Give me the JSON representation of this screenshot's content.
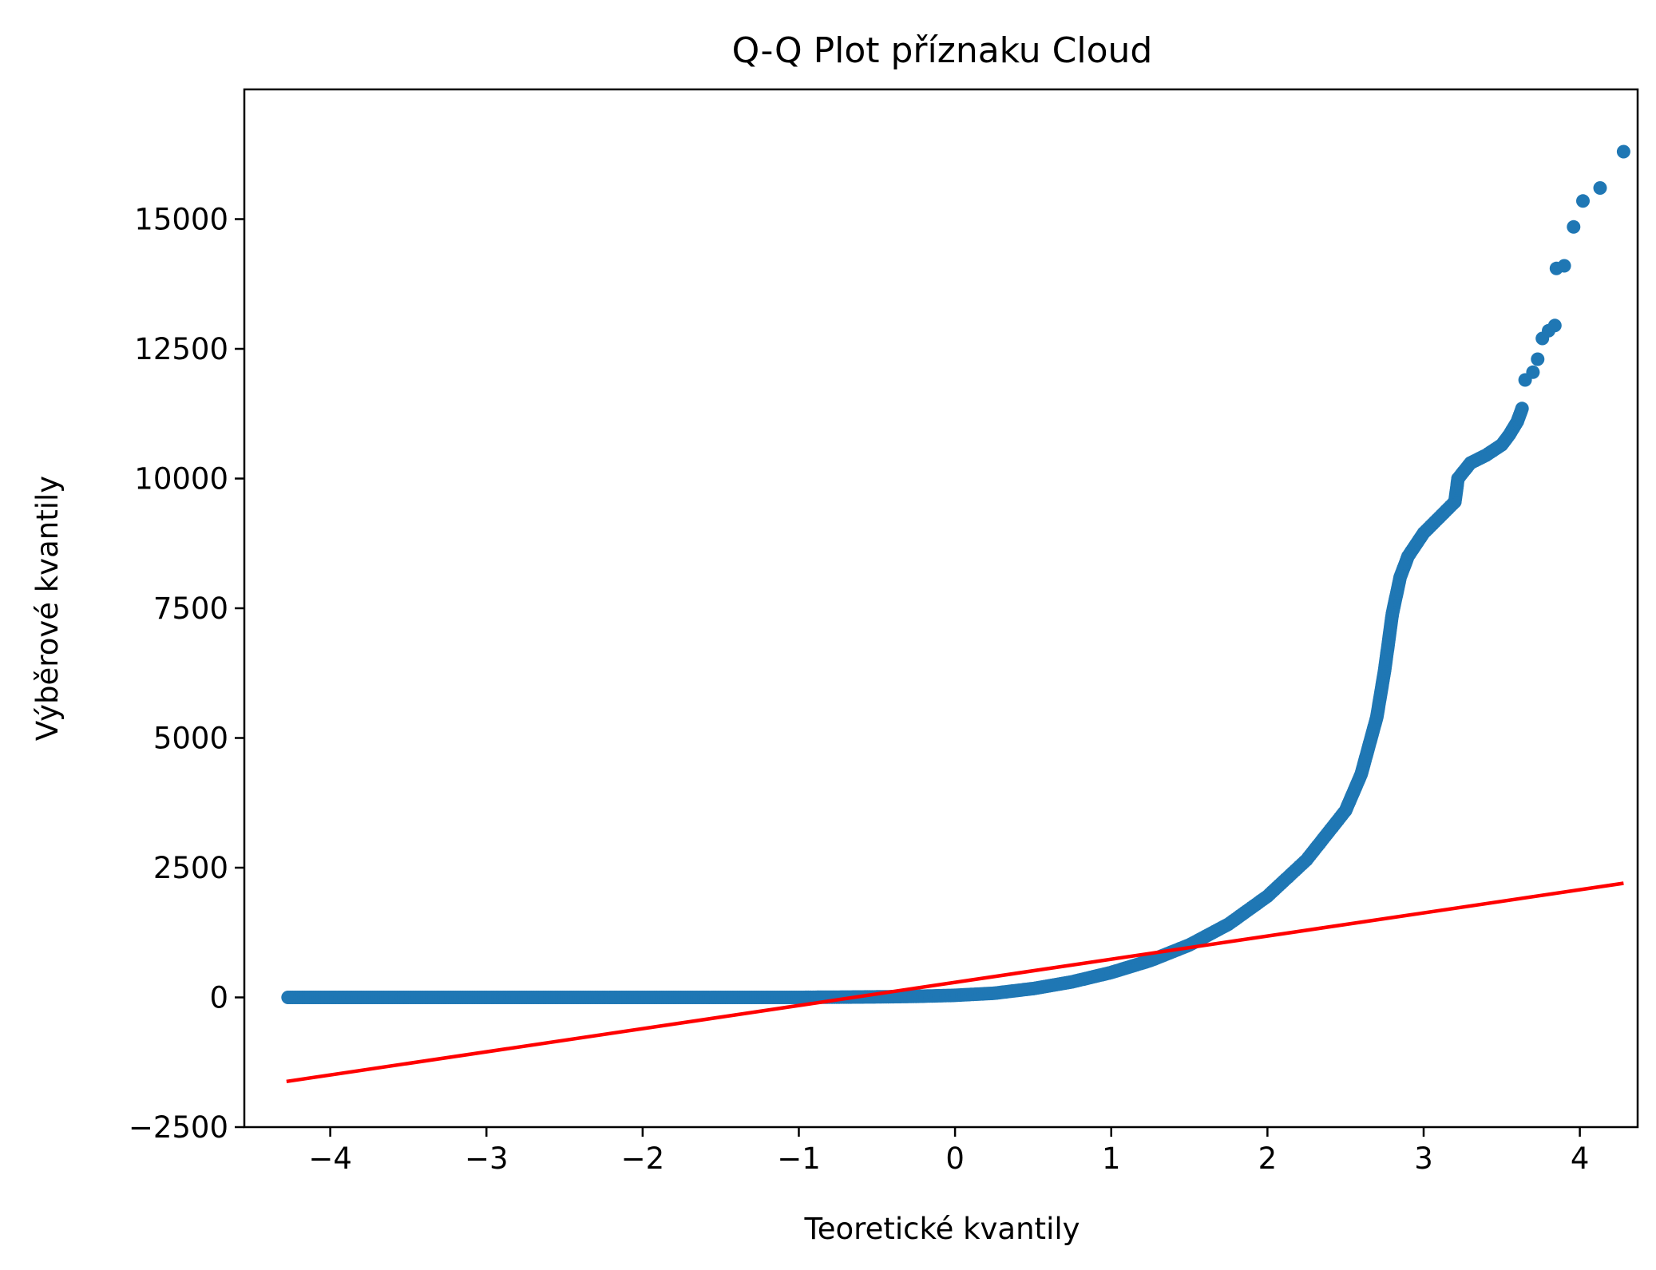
{
  "chart_data": {
    "type": "scatter",
    "title": "Q-Q Plot příznaku Cloud",
    "xlabel": "Teoretické kvantily",
    "ylabel": "Výběrové kvantily",
    "xlim": [
      -4.55,
      4.37
    ],
    "ylim": [
      -2500,
      17500
    ],
    "x_ticks": [
      -4,
      -3,
      -2,
      -1,
      0,
      1,
      2,
      3,
      4
    ],
    "x_tick_labels": [
      "−4",
      "−3",
      "−2",
      "−1",
      "0",
      "1",
      "2",
      "3",
      "4"
    ],
    "y_ticks": [
      -2500,
      0,
      2500,
      5000,
      7500,
      10000,
      12500,
      15000
    ],
    "y_tick_labels": [
      "−2500",
      "0",
      "2500",
      "5000",
      "7500",
      "10000",
      "12500",
      "15000"
    ],
    "grid": false,
    "series": [
      {
        "kind": "points",
        "color": "#1f77b4",
        "points": [
          [
            -4.27,
            0
          ],
          [
            -4.12,
            0
          ],
          [
            -4.02,
            0
          ],
          [
            -3.95,
            0
          ],
          [
            -3.9,
            0
          ],
          [
            -3.85,
            0
          ],
          [
            -3.8,
            0
          ],
          [
            -3.7,
            0
          ],
          [
            -3.5,
            0
          ],
          [
            -3.0,
            0
          ],
          [
            -2.5,
            0
          ],
          [
            -2.0,
            0
          ],
          [
            -1.5,
            0
          ],
          [
            -1.0,
            0
          ],
          [
            -0.5,
            10
          ],
          [
            -0.25,
            20
          ],
          [
            0.0,
            40
          ],
          [
            0.25,
            80
          ],
          [
            0.5,
            170
          ],
          [
            0.75,
            300
          ],
          [
            1.0,
            480
          ],
          [
            1.25,
            710
          ],
          [
            1.5,
            1010
          ],
          [
            1.75,
            1410
          ],
          [
            2.0,
            1950
          ],
          [
            2.25,
            2650
          ],
          [
            2.5,
            3600
          ],
          [
            2.6,
            4300
          ],
          [
            2.7,
            5400
          ],
          [
            2.75,
            6300
          ],
          [
            2.8,
            7400
          ],
          [
            2.85,
            8100
          ],
          [
            2.9,
            8500
          ],
          [
            3.0,
            8950
          ],
          [
            3.1,
            9250
          ],
          [
            3.2,
            9550
          ],
          [
            3.22,
            10000
          ],
          [
            3.3,
            10300
          ],
          [
            3.4,
            10450
          ],
          [
            3.5,
            10650
          ],
          [
            3.55,
            10850
          ],
          [
            3.6,
            11100
          ],
          [
            3.63,
            11350
          ],
          [
            3.65,
            11900
          ],
          [
            3.7,
            12050
          ],
          [
            3.73,
            12300
          ],
          [
            3.76,
            12700
          ],
          [
            3.8,
            12850
          ],
          [
            3.84,
            12950
          ],
          [
            3.85,
            14050
          ],
          [
            3.9,
            14100
          ],
          [
            3.96,
            14850
          ],
          [
            4.02,
            15350
          ],
          [
            4.13,
            15600
          ],
          [
            4.28,
            16300
          ]
        ]
      },
      {
        "kind": "line",
        "color": "#ff0000",
        "points": [
          [
            -4.28,
            -1620
          ],
          [
            4.28,
            2200
          ]
        ]
      }
    ]
  }
}
